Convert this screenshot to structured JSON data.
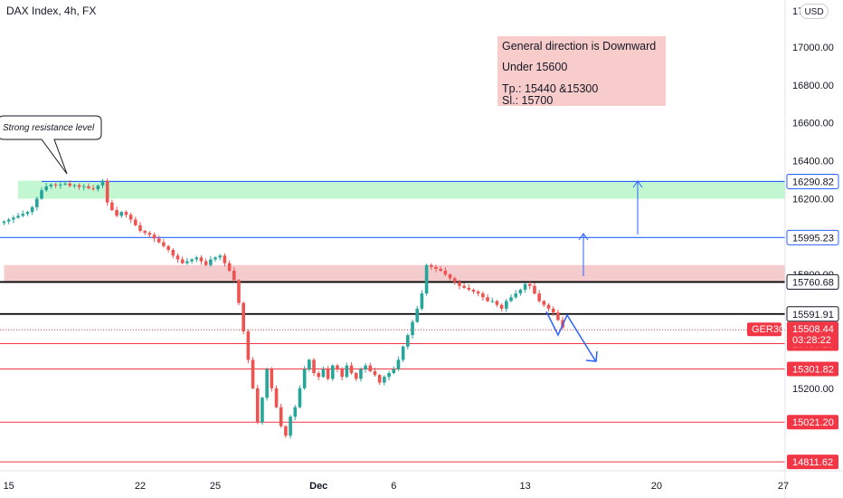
{
  "header": {
    "title": "DAX Index, 4h, FX",
    "currency": "USD",
    "corner_label": "17"
  },
  "colors": {
    "up": "#26a69a",
    "down": "#ef5350",
    "blue": "#2962ff",
    "green_zone": "#b9f6ca",
    "red_zone": "#f3c3c4",
    "note_bg": "#f9cccc",
    "black": "#000000",
    "tag_red": "#f23645",
    "tag_blue": "#2962ff",
    "grey_tag": "#9e9e9e"
  },
  "chart_data": {
    "type": "candlestick",
    "title": "DAX Index, 4h, FX",
    "ylim": [
      14700,
      17150
    ],
    "y_ticks": [
      15200,
      15800,
      16000,
      16200,
      16400,
      16600,
      16800,
      17000
    ],
    "x_ticks": [
      {
        "label": "15",
        "slot": 1
      },
      {
        "label": "22",
        "slot": 29
      },
      {
        "label": "25",
        "slot": 45
      },
      {
        "label": "Dec",
        "slot": 67
      },
      {
        "label": "6",
        "slot": 83
      },
      {
        "label": "13",
        "slot": 111
      },
      {
        "label": "20",
        "slot": 139
      },
      {
        "label": "27",
        "slot": 166
      }
    ],
    "closes": [
      16080,
      16090,
      16100,
      16110,
      16120,
      16130,
      16155,
      16200,
      16245,
      16265,
      16275,
      16270,
      16275,
      16280,
      16268,
      16272,
      16262,
      16266,
      16255,
      16250,
      16270,
      16295,
      16180,
      16140,
      16110,
      16130,
      16115,
      16090,
      16060,
      16030,
      16020,
      16010,
      15990,
      15970,
      15950,
      15930,
      15900,
      15880,
      15860,
      15870,
      15880,
      15890,
      15870,
      15850,
      15880,
      15890,
      15900,
      15860,
      15820,
      15770,
      15650,
      15500,
      15350,
      15200,
      15020,
      15150,
      15300,
      15200,
      15100,
      15000,
      14950,
      15050,
      15100,
      15200,
      15300,
      15350,
      15280,
      15260,
      15300,
      15250,
      15320,
      15300,
      15260,
      15320,
      15280,
      15250,
      15300,
      15320,
      15290,
      15270,
      15230,
      15260,
      15280,
      15300,
      15350,
      15420,
      15480,
      15550,
      15620,
      15700,
      15850,
      15840,
      15830,
      15820,
      15800,
      15780,
      15760,
      15740,
      15730,
      15720,
      15710,
      15700,
      15680,
      15660,
      15660,
      15640,
      15620,
      15660,
      15680,
      15700,
      15720,
      15750,
      15740,
      15700,
      15660,
      15640,
      15620,
      15600,
      15560,
      15520
    ],
    "price_levels": [
      {
        "value": 16290.82,
        "label": "16290.82",
        "style": "blue"
      },
      {
        "value": 15995.23,
        "label": "15995.23",
        "style": "blue"
      },
      {
        "value": 15760.68,
        "label": "15760.68",
        "style": "black"
      },
      {
        "value": 15591.91,
        "label": "15591.91",
        "style": "black"
      },
      {
        "value": 15435.19,
        "label": "15435.19",
        "style": "red"
      },
      {
        "value": 15301.82,
        "label": "15301.82",
        "style": "red"
      },
      {
        "value": 15021.2,
        "label": "15021.20",
        "style": "red"
      },
      {
        "value": 14811.62,
        "label": "14811.62",
        "style": "red"
      }
    ],
    "current_price": {
      "value": 15508.44,
      "label": "15508.44",
      "countdown": "03:28:22",
      "symbol": "GER30"
    },
    "zones": [
      {
        "name": "resistance-zone-green",
        "from_price": 16200,
        "to_price": 16295,
        "from_slot": 3,
        "to_slot": 180
      },
      {
        "name": "resistance-zone-red",
        "from_price": 15760,
        "to_price": 15850,
        "from_slot": 0,
        "to_slot": 180
      }
    ]
  },
  "annotations": {
    "callout": "Strong resistance level",
    "note": {
      "line1": "General direction is Downward",
      "line2": "Under 15600",
      "line3": "Tp.:    15440 &15300",
      "line4": "Sl.: 15700"
    }
  }
}
